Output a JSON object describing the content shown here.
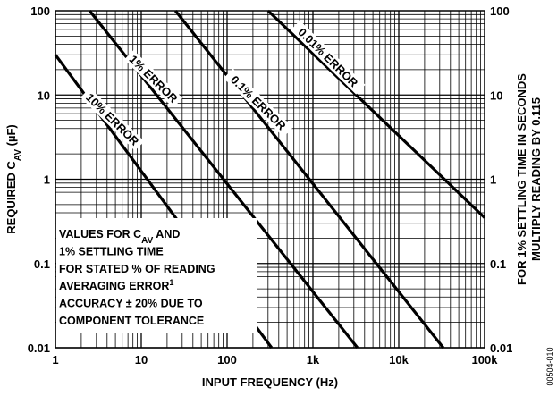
{
  "chart_data": {
    "type": "line",
    "xscale": "log",
    "yscale": "log",
    "xlim": [
      1,
      100000
    ],
    "ylim": [
      0.01,
      100
    ],
    "grid": true,
    "xlabel": "INPUT FREQUENCY (Hz)",
    "ylabel": {
      "main": "REQUIRED C",
      "sub": "AV",
      "unit": " (µF)"
    },
    "y2label": [
      "FOR 1% SETTLING TIME IN SECONDS",
      "MULTIPLY READING BY 0.115"
    ],
    "x_ticks": [
      {
        "value": 1,
        "label": "1"
      },
      {
        "value": 10,
        "label": "10"
      },
      {
        "value": 100,
        "label": "100"
      },
      {
        "value": 1000,
        "label": "1k"
      },
      {
        "value": 10000,
        "label": "10k"
      },
      {
        "value": 100000,
        "label": "100k"
      }
    ],
    "y_ticks": [
      {
        "value": 100,
        "label": "100"
      },
      {
        "value": 10,
        "label": "10"
      },
      {
        "value": 1,
        "label": "1"
      },
      {
        "value": 0.1,
        "label": "0.1"
      },
      {
        "value": 0.01,
        "label": "0.01"
      }
    ],
    "series": [
      {
        "name": "0.01% ERROR",
        "x": [
          300,
          100000
        ],
        "y": [
          100,
          0.35
        ]
      },
      {
        "name": "0.1% ERROR",
        "x": [
          25,
          33000
        ],
        "y": [
          100,
          0.01
        ]
      },
      {
        "name": "1% ERROR",
        "x": [
          2.5,
          3300
        ],
        "y": [
          100,
          0.01
        ]
      },
      {
        "name": "10% ERROR",
        "x": [
          1,
          330
        ],
        "y": [
          30,
          0.01
        ]
      }
    ],
    "annotation": {
      "lines": [
        {
          "text": "VALUES FOR C",
          "sub": "AV",
          "after": " AND"
        },
        {
          "text": "1% SETTLING TIME"
        },
        {
          "text": "FOR STATED % OF READING"
        },
        {
          "text": "AVERAGING ERROR",
          "sup": "1"
        },
        {
          "text": "ACCURACY ± 20% DUE TO"
        },
        {
          "text": "COMPONENT TOLERANCE"
        }
      ]
    },
    "figure_id": "00504-010"
  }
}
